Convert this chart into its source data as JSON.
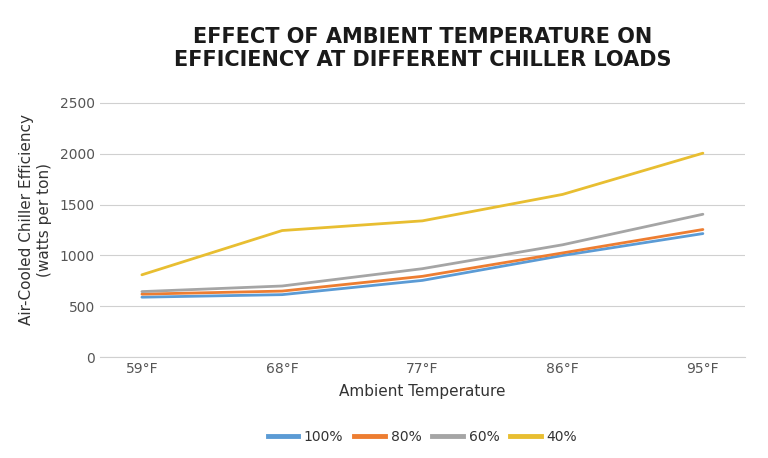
{
  "title": "EFFECT OF AMBIENT TEMPERATURE ON\nEFFICIENCY AT DIFFERENT CHILLER LOADS",
  "xlabel": "Ambient Temperature",
  "ylabel": "Air-Cooled Chiller Efficiency\n(watts per ton)",
  "x_labels": [
    "59°F",
    "68°F",
    "77°F",
    "86°F",
    "95°F"
  ],
  "x_values": [
    0,
    1,
    2,
    3,
    4
  ],
  "series": [
    {
      "label": "100%",
      "color": "#5B9BD5",
      "values": [
        590,
        615,
        755,
        1000,
        1215
      ]
    },
    {
      "label": "80%",
      "color": "#ED7D31",
      "values": [
        620,
        650,
        795,
        1025,
        1255
      ]
    },
    {
      "label": "60%",
      "color": "#A5A5A5",
      "values": [
        645,
        700,
        870,
        1105,
        1405
      ]
    },
    {
      "label": "40%",
      "color": "#E8BE31",
      "values": [
        810,
        1245,
        1340,
        1600,
        2005
      ]
    }
  ],
  "ylim": [
    0,
    2700
  ],
  "yticks": [
    0,
    500,
    1000,
    1500,
    2000,
    2500
  ],
  "title_fontsize": 15,
  "axis_label_fontsize": 11,
  "tick_fontsize": 10,
  "legend_fontsize": 10,
  "background_color": "#ffffff",
  "grid_color": "#d0d0d0",
  "line_width": 2.0
}
